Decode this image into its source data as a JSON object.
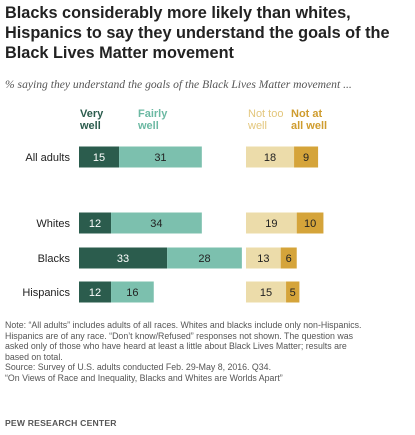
{
  "title": "Blacks considerably more likely than whites, Hispanics to say they understand the goals of the Black Lives Matter movement",
  "subtitle": "% saying they understand the goals of the Black Lives Matter movement ...",
  "headers": {
    "very_well": [
      "Very",
      "well"
    ],
    "fairly_well": [
      "Fairly",
      "well"
    ],
    "not_too_well": [
      "Not too",
      "well"
    ],
    "not_at_all_well": [
      "Not at",
      "all well"
    ]
  },
  "chart_data": {
    "type": "bar",
    "orientation": "horizontal",
    "stacked": true,
    "categories": [
      "All adults",
      "Whites",
      "Blacks",
      "Hispanics"
    ],
    "series": [
      {
        "name": "Very well",
        "group": "left",
        "color": "#2b5c4d",
        "values": [
          15,
          12,
          33,
          12
        ]
      },
      {
        "name": "Fairly well",
        "group": "left",
        "color": "#7cc0ae",
        "values": [
          31,
          34,
          28,
          16
        ]
      },
      {
        "name": "Not too well",
        "group": "right",
        "color": "#ecdcaa",
        "values": [
          18,
          19,
          13,
          15
        ]
      },
      {
        "name": "Not at all well",
        "group": "right",
        "color": "#d5a43a",
        "values": [
          9,
          10,
          6,
          5
        ]
      }
    ]
  },
  "notes": [
    "Note: “All adults” includes adults of all races. Whites and blacks include only non-Hispanics.",
    "Hispanics are of any race. “Don’t know/Refused” responses not shown. The question was",
    "asked only of those who have heard at least a little about Black Lives Matter; results are",
    "based on total.",
    "Source: Survey of U.S. adults conducted Feb. 29-May 8, 2016. Q34.",
    "“On Views of Race and Inequality, Blacks and Whites are Worlds Apart”"
  ],
  "brand": "PEW RESEARCH CENTER"
}
